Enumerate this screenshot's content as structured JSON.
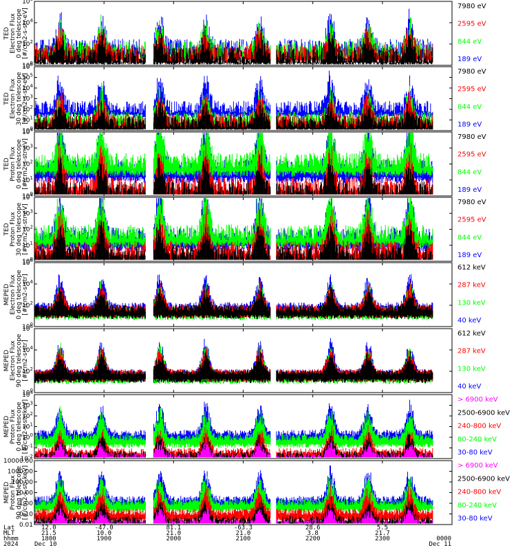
{
  "colors": {
    "black": "#000000",
    "blue": "#0000ff",
    "red": "#ff0000",
    "green": "#00ff00",
    "magenta": "#ff00ff"
  },
  "chart_data": [
    {
      "type": "line",
      "ylabel": [
        "TED",
        "Electron Flux",
        "0 deg telescope",
        "[#/cm2-s-str-eV]"
      ],
      "log": true,
      "ylim_exp": [
        0,
        6
      ],
      "yticks": [
        "10^0",
        "10^2",
        "10^4",
        "10^6"
      ],
      "series": [
        {
          "name": "7980 eV",
          "color": "black"
        },
        {
          "name": "2595 eV",
          "color": "red"
        },
        {
          "name": "844 eV",
          "color": "green"
        },
        {
          "name": "189 eV",
          "color": "blue"
        }
      ],
      "base": {
        "blue": 1.7,
        "red": 1.2,
        "green": 1.5,
        "black": 0.9
      },
      "noise": 0.8
    },
    {
      "type": "line",
      "ylabel": [
        "TED",
        "Electron Flux",
        "30 deg telescope",
        "[#/cm2-s-str-eV]"
      ],
      "log": true,
      "ylim_exp": [
        0,
        6
      ],
      "yticks": [
        "10^0",
        "10^1",
        "10^2",
        "10^3",
        "10^4",
        "10^5",
        "10^6"
      ],
      "series": [
        {
          "name": "7980 eV",
          "color": "black"
        },
        {
          "name": "2595 eV",
          "color": "red"
        },
        {
          "name": "844 eV",
          "color": "green"
        },
        {
          "name": "189 eV",
          "color": "blue"
        }
      ],
      "base": {
        "blue": 2.2,
        "red": 1.0,
        "green": 1.2,
        "black": 0.8
      },
      "noise": 0.6
    },
    {
      "type": "line",
      "ylabel": [
        "TED",
        "Proton Flux",
        "0 deg telescope",
        "[#/cm2-s-str-eV]"
      ],
      "log": true,
      "ylim_exp": [
        0,
        4
      ],
      "yticks": [
        "10^0",
        "10^1",
        "10^2",
        "10^3",
        "10^4"
      ],
      "series": [
        {
          "name": "7980 eV",
          "color": "black"
        },
        {
          "name": "2595 eV",
          "color": "red"
        },
        {
          "name": "844 eV",
          "color": "green"
        },
        {
          "name": "189 eV",
          "color": "blue"
        }
      ],
      "base": {
        "blue": 1.8,
        "red": 0.7,
        "green": 2.2,
        "black": 0.4
      },
      "noise": 0.5
    },
    {
      "type": "line",
      "ylabel": [
        "TED",
        "Proton Flux",
        "30 deg telescope",
        "[#/cm2-s-str-eV]"
      ],
      "log": true,
      "ylim_exp": [
        0,
        4
      ],
      "yticks": [
        "10^0",
        "10^1",
        "10^2",
        "10^3",
        "10^4"
      ],
      "series": [
        {
          "name": "7980 eV",
          "color": "black"
        },
        {
          "name": "2595 eV",
          "color": "red"
        },
        {
          "name": "844 eV",
          "color": "green"
        },
        {
          "name": "189 eV",
          "color": "blue"
        }
      ],
      "base": {
        "blue": 1.6,
        "red": 0.8,
        "green": 1.8,
        "black": 0.5
      },
      "noise": 0.5
    },
    {
      "type": "line",
      "ylabel": [
        "MEPED",
        "Electron Flux",
        "0 deg telescope",
        "[#/cm2-s-str]"
      ],
      "log": true,
      "ylim_exp": [
        0,
        6
      ],
      "yticks": [
        "10^0",
        "10^2",
        "10^4",
        "10^6"
      ],
      "series": [
        {
          "name": "612 keV",
          "color": "black"
        },
        {
          "name": "287 keV",
          "color": "red"
        },
        {
          "name": "130 keV",
          "color": "green"
        },
        {
          "name": "40 keV",
          "color": "blue"
        }
      ],
      "base": {
        "blue": 2.0,
        "red": 1.8,
        "green": 1.6,
        "black": 1.7
      },
      "noise": 0.3
    },
    {
      "type": "line",
      "ylabel": [
        "MEPED",
        "Electron Flux",
        "90 deg telescope",
        "[#/cm2-s-str]"
      ],
      "log": true,
      "ylim_exp": [
        0,
        6
      ],
      "yticks": [
        "10^0",
        "10^2",
        "10^4",
        "10^6"
      ],
      "series": [
        {
          "name": "612 keV",
          "color": "black"
        },
        {
          "name": "287 keV",
          "color": "red"
        },
        {
          "name": "130 keV",
          "color": "green"
        },
        {
          "name": "40 keV",
          "color": "blue"
        }
      ],
      "base": {
        "blue": 2.0,
        "red": 2.0,
        "green": 1.8,
        "black": 1.9
      },
      "noise": 0.2
    },
    {
      "type": "line",
      "ylabel": [
        "MEPED",
        "Proton Flux",
        "0 deg telescope",
        "[#/cm2-s-str-keV]"
      ],
      "log": true,
      "ylim_exp": [
        -2,
        4
      ],
      "yticks": [
        "10^-2",
        "10^-1",
        "10^0",
        "10^1",
        "10^2",
        "10^3",
        "10^4"
      ],
      "series": [
        {
          "name": "> 6900 keV",
          "color": "magenta"
        },
        {
          "name": "2500-6900 keV",
          "color": "black"
        },
        {
          "name": "240-800 keV",
          "color": "red"
        },
        {
          "name": "80-240 keV",
          "color": "green"
        },
        {
          "name": "30-80 keV",
          "color": "blue"
        }
      ],
      "base": {
        "blue": 0.4,
        "red": -1.3,
        "green": 0.0,
        "black": -1.6,
        "magenta": -1.8
      },
      "noise": 0.3
    },
    {
      "type": "line",
      "ylabel": [
        "MEPED",
        "Proton Flux",
        "90 deg telescope",
        "[#/cm2-s-str-keV]"
      ],
      "log": true,
      "ylim_exp": [
        -2,
        4
      ],
      "yticks": [
        "0.01",
        "0.10",
        "1.00",
        "10.00",
        "100.00",
        "1000.00",
        "10000.00"
      ],
      "series": [
        {
          "name": "> 6900 keV",
          "color": "magenta"
        },
        {
          "name": "2500-6900 keV",
          "color": "black"
        },
        {
          "name": "240-800 keV",
          "color": "red"
        },
        {
          "name": "80-240 keV",
          "color": "green"
        },
        {
          "name": "30-80 keV",
          "color": "blue"
        }
      ],
      "base": {
        "blue": 0.4,
        "red": -0.8,
        "green": 0.1,
        "black": -1.5,
        "magenta": -1.8
      },
      "noise": 0.3
    }
  ],
  "events": [
    0.06,
    0.16,
    0.3,
    0.41,
    0.54,
    0.71,
    0.8,
    0.9
  ],
  "bottom": {
    "labels": {
      "lat": "Lat",
      "mlt": "MLT",
      "hhmm": "hhmm",
      "year": "2024"
    },
    "cols": [
      {
        "lat": "12.0",
        "mlt": "21.5",
        "hhmm": "1800",
        "date": "Dec 10"
      },
      {
        "lat": "-47.0",
        "mlt": "10.0",
        "hhmm": "1900",
        "date": ""
      },
      {
        "lat": "81.1",
        "mlt": "21.0",
        "hhmm": "2000",
        "date": ""
      },
      {
        "lat": "-63.3",
        "mlt": "21.0",
        "hhmm": "2100",
        "date": ""
      },
      {
        "lat": "28.6",
        "mlt": "3.8",
        "hhmm": "2200",
        "date": ""
      },
      {
        "lat": "5.5",
        "mlt": "21.7",
        "hhmm": "2300",
        "date": ""
      },
      {
        "lat": "",
        "mlt": "",
        "hhmm": "0000",
        "date": "Dec 11"
      }
    ]
  }
}
